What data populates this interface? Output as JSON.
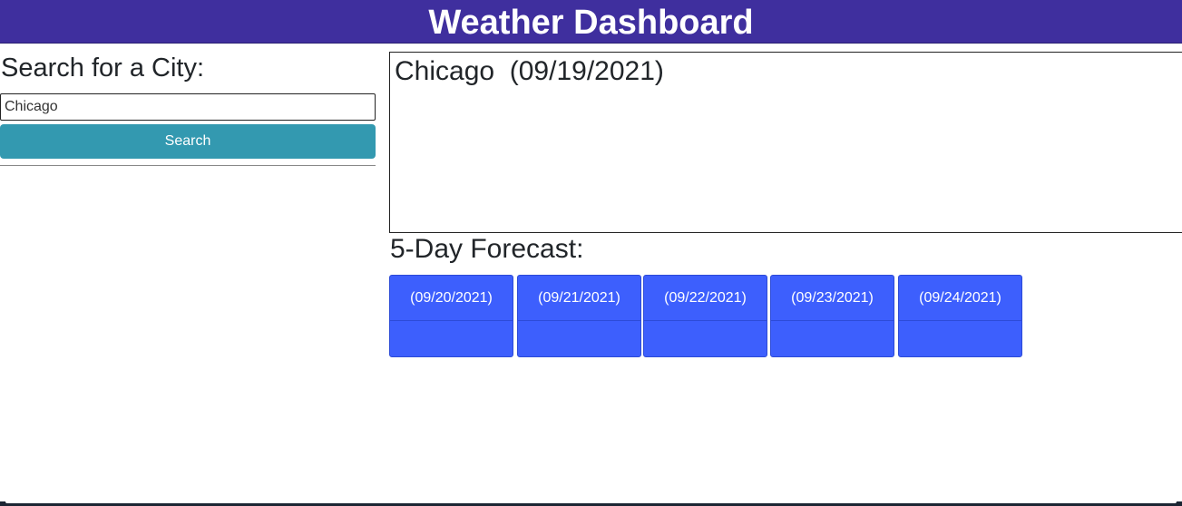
{
  "header": {
    "title": "Weather Dashboard"
  },
  "search": {
    "heading": "Search for a City:",
    "input_value": "Chicago",
    "button_label": "Search"
  },
  "current": {
    "city": "Chicago",
    "date": "(09/19/2021)"
  },
  "forecast": {
    "heading": "5-Day Forecast:",
    "days": [
      {
        "date": "(09/20/2021)"
      },
      {
        "date": "(09/21/2021)"
      },
      {
        "date": "(09/22/2021)"
      },
      {
        "date": "(09/23/2021)"
      },
      {
        "date": "(09/24/2021)"
      }
    ]
  },
  "colors": {
    "header_bg": "#3f2f9e",
    "button_bg": "#3399b0",
    "card_bg": "#3d5ffd"
  }
}
